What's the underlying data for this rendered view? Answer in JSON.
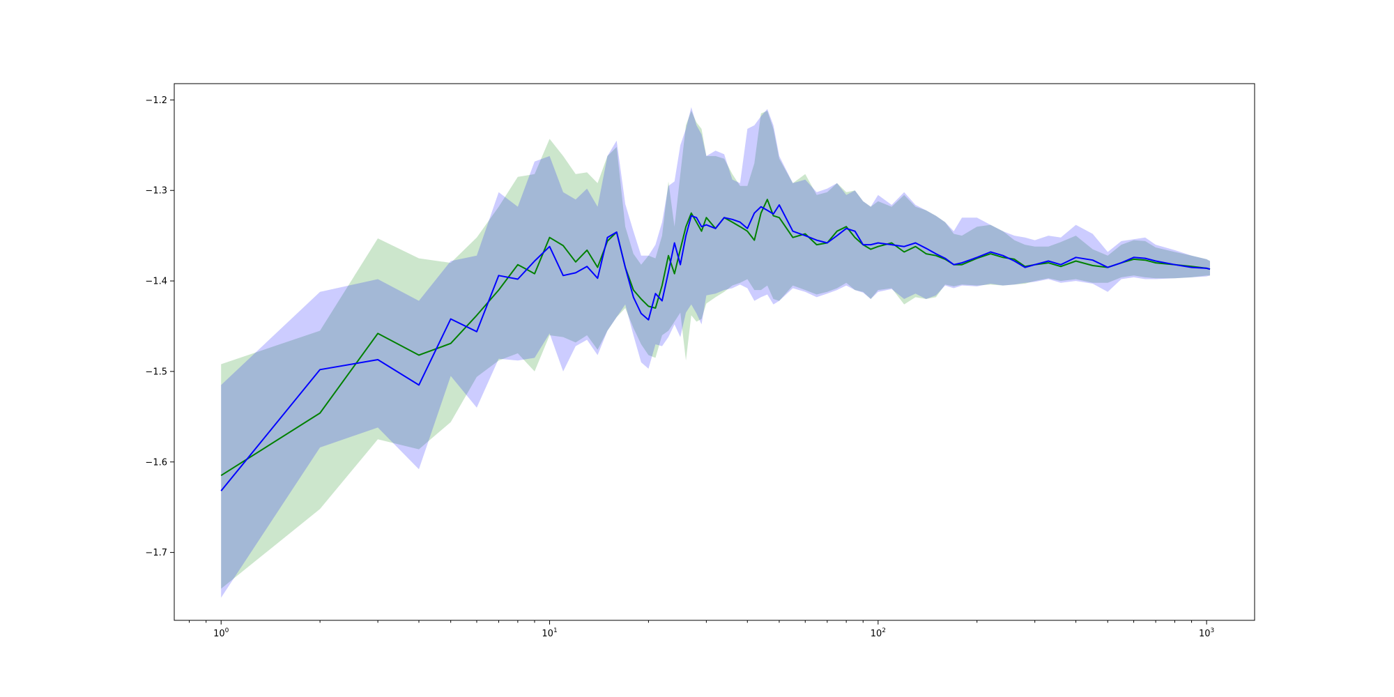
{
  "chart_data": {
    "type": "line",
    "title": "",
    "xlabel": "",
    "ylabel": "",
    "xscale": "log",
    "xlim": [
      0.72,
      1400
    ],
    "ylim": [
      -1.775,
      -1.182
    ],
    "grid": false,
    "legend": "none",
    "x_ticks": [
      {
        "value": 1,
        "base": "10",
        "exp": "0"
      },
      {
        "value": 10,
        "base": "10",
        "exp": "1"
      },
      {
        "value": 100,
        "base": "10",
        "exp": "2"
      },
      {
        "value": 1000,
        "base": "10",
        "exp": "3"
      }
    ],
    "y_ticks": [
      {
        "value": -1.2,
        "label": "−1.2"
      },
      {
        "value": -1.3,
        "label": "−1.3"
      },
      {
        "value": -1.4,
        "label": "−1.4"
      },
      {
        "value": -1.5,
        "label": "−1.5"
      },
      {
        "value": -1.6,
        "label": "−1.6"
      },
      {
        "value": -1.7,
        "label": "−1.7"
      }
    ],
    "series": [
      {
        "color": "#008000",
        "band_color": "#008000",
        "band_opacity": 0.2,
        "x": [
          1,
          2,
          3,
          4,
          5,
          6,
          7,
          8,
          9,
          10,
          11,
          12,
          13,
          14,
          15,
          16,
          17,
          18,
          19,
          20,
          21,
          22,
          23,
          24,
          25,
          26,
          27,
          28,
          29,
          30,
          32,
          34,
          36,
          38,
          40,
          42,
          44,
          46,
          48,
          50,
          55,
          60,
          65,
          70,
          75,
          80,
          85,
          90,
          95,
          100,
          110,
          120,
          130,
          140,
          150,
          160,
          170,
          180,
          200,
          220,
          240,
          260,
          280,
          300,
          330,
          360,
          400,
          450,
          500,
          550,
          600,
          650,
          700,
          800,
          900,
          1000,
          1024
        ],
        "mean": [
          -1.615,
          -1.546,
          -1.458,
          -1.482,
          -1.469,
          -1.438,
          -1.41,
          -1.382,
          -1.392,
          -1.352,
          -1.361,
          -1.379,
          -1.366,
          -1.385,
          -1.356,
          -1.346,
          -1.385,
          -1.41,
          -1.42,
          -1.428,
          -1.43,
          -1.405,
          -1.372,
          -1.392,
          -1.365,
          -1.34,
          -1.325,
          -1.335,
          -1.345,
          -1.33,
          -1.342,
          -1.33,
          -1.335,
          -1.34,
          -1.345,
          -1.355,
          -1.325,
          -1.31,
          -1.328,
          -1.33,
          -1.352,
          -1.348,
          -1.36,
          -1.358,
          -1.345,
          -1.34,
          -1.352,
          -1.36,
          -1.365,
          -1.362,
          -1.358,
          -1.368,
          -1.362,
          -1.37,
          -1.372,
          -1.376,
          -1.382,
          -1.382,
          -1.375,
          -1.37,
          -1.374,
          -1.376,
          -1.384,
          -1.382,
          -1.38,
          -1.384,
          -1.378,
          -1.383,
          -1.385,
          -1.38,
          -1.376,
          -1.377,
          -1.38,
          -1.382,
          -1.384,
          -1.386,
          -1.387
        ],
        "upper": [
          -1.492,
          -1.455,
          -1.353,
          -1.375,
          -1.38,
          -1.352,
          -1.318,
          -1.285,
          -1.282,
          -1.243,
          -1.262,
          -1.282,
          -1.28,
          -1.292,
          -1.262,
          -1.252,
          -1.34,
          -1.37,
          -1.382,
          -1.372,
          -1.375,
          -1.35,
          -1.29,
          -1.34,
          -1.282,
          -1.228,
          -1.212,
          -1.225,
          -1.232,
          -1.262,
          -1.262,
          -1.265,
          -1.282,
          -1.295,
          -1.295,
          -1.27,
          -1.215,
          -1.212,
          -1.232,
          -1.265,
          -1.292,
          -1.282,
          -1.305,
          -1.302,
          -1.292,
          -1.302,
          -1.3,
          -1.312,
          -1.318,
          -1.312,
          -1.318,
          -1.305,
          -1.318,
          -1.322,
          -1.328,
          -1.335,
          -1.348,
          -1.35,
          -1.34,
          -1.338,
          -1.345,
          -1.355,
          -1.36,
          -1.362,
          -1.362,
          -1.357,
          -1.35,
          -1.365,
          -1.372,
          -1.36,
          -1.355,
          -1.356,
          -1.363,
          -1.368,
          -1.372,
          -1.376,
          -1.378
        ],
        "lower": [
          -1.74,
          -1.652,
          -1.575,
          -1.586,
          -1.556,
          -1.506,
          -1.488,
          -1.48,
          -1.5,
          -1.46,
          -1.462,
          -1.468,
          -1.46,
          -1.476,
          -1.455,
          -1.44,
          -1.43,
          -1.452,
          -1.47,
          -1.482,
          -1.485,
          -1.46,
          -1.455,
          -1.445,
          -1.435,
          -1.488,
          -1.438,
          -1.445,
          -1.442,
          -1.425,
          -1.418,
          -1.412,
          -1.405,
          -1.402,
          -1.398,
          -1.41,
          -1.41,
          -1.405,
          -1.42,
          -1.422,
          -1.405,
          -1.41,
          -1.415,
          -1.412,
          -1.408,
          -1.402,
          -1.41,
          -1.412,
          -1.42,
          -1.41,
          -1.408,
          -1.426,
          -1.418,
          -1.42,
          -1.418,
          -1.404,
          -1.406,
          -1.404,
          -1.405,
          -1.404,
          -1.405,
          -1.404,
          -1.403,
          -1.4,
          -1.397,
          -1.4,
          -1.398,
          -1.402,
          -1.402,
          -1.396,
          -1.394,
          -1.396,
          -1.397,
          -1.397,
          -1.396,
          -1.394,
          -1.394
        ]
      },
      {
        "color": "#0000ff",
        "band_color": "#0000ff",
        "band_opacity": 0.2,
        "x": [
          1,
          2,
          3,
          4,
          5,
          6,
          7,
          8,
          9,
          10,
          11,
          12,
          13,
          14,
          15,
          16,
          17,
          18,
          19,
          20,
          21,
          22,
          23,
          24,
          25,
          26,
          27,
          28,
          29,
          30,
          32,
          34,
          36,
          38,
          40,
          42,
          44,
          46,
          48,
          50,
          55,
          60,
          65,
          70,
          75,
          80,
          85,
          90,
          95,
          100,
          110,
          120,
          130,
          140,
          150,
          160,
          170,
          180,
          200,
          220,
          240,
          260,
          280,
          300,
          330,
          360,
          400,
          450,
          500,
          550,
          600,
          650,
          700,
          800,
          900,
          1000,
          1024
        ],
        "mean": [
          -1.632,
          -1.498,
          -1.487,
          -1.515,
          -1.442,
          -1.456,
          -1.394,
          -1.398,
          -1.378,
          -1.362,
          -1.394,
          -1.391,
          -1.384,
          -1.397,
          -1.352,
          -1.346,
          -1.385,
          -1.418,
          -1.436,
          -1.443,
          -1.414,
          -1.422,
          -1.39,
          -1.358,
          -1.382,
          -1.35,
          -1.328,
          -1.33,
          -1.34,
          -1.338,
          -1.342,
          -1.33,
          -1.332,
          -1.335,
          -1.342,
          -1.325,
          -1.318,
          -1.322,
          -1.326,
          -1.316,
          -1.345,
          -1.35,
          -1.355,
          -1.358,
          -1.35,
          -1.342,
          -1.345,
          -1.36,
          -1.36,
          -1.358,
          -1.36,
          -1.362,
          -1.358,
          -1.364,
          -1.37,
          -1.375,
          -1.382,
          -1.38,
          -1.374,
          -1.368,
          -1.372,
          -1.378,
          -1.385,
          -1.382,
          -1.378,
          -1.382,
          -1.374,
          -1.377,
          -1.385,
          -1.38,
          -1.374,
          -1.375,
          -1.378,
          -1.382,
          -1.385,
          -1.386,
          -1.387
        ],
        "upper": [
          -1.515,
          -1.412,
          -1.398,
          -1.422,
          -1.378,
          -1.372,
          -1.302,
          -1.318,
          -1.268,
          -1.262,
          -1.302,
          -1.31,
          -1.298,
          -1.318,
          -1.262,
          -1.245,
          -1.315,
          -1.345,
          -1.372,
          -1.372,
          -1.36,
          -1.335,
          -1.295,
          -1.29,
          -1.25,
          -1.232,
          -1.208,
          -1.228,
          -1.238,
          -1.262,
          -1.256,
          -1.26,
          -1.288,
          -1.292,
          -1.232,
          -1.228,
          -1.218,
          -1.21,
          -1.228,
          -1.262,
          -1.292,
          -1.288,
          -1.302,
          -1.298,
          -1.292,
          -1.305,
          -1.3,
          -1.312,
          -1.318,
          -1.305,
          -1.316,
          -1.302,
          -1.316,
          -1.322,
          -1.328,
          -1.335,
          -1.345,
          -1.33,
          -1.33,
          -1.338,
          -1.345,
          -1.35,
          -1.352,
          -1.355,
          -1.35,
          -1.352,
          -1.338,
          -1.348,
          -1.368,
          -1.356,
          -1.354,
          -1.352,
          -1.36,
          -1.366,
          -1.372,
          -1.376,
          -1.378
        ],
        "lower": [
          -1.75,
          -1.584,
          -1.562,
          -1.608,
          -1.505,
          -1.54,
          -1.486,
          -1.488,
          -1.485,
          -1.458,
          -1.5,
          -1.472,
          -1.465,
          -1.482,
          -1.455,
          -1.44,
          -1.426,
          -1.46,
          -1.49,
          -1.497,
          -1.47,
          -1.472,
          -1.462,
          -1.448,
          -1.462,
          -1.435,
          -1.426,
          -1.436,
          -1.448,
          -1.416,
          -1.414,
          -1.41,
          -1.408,
          -1.404,
          -1.408,
          -1.422,
          -1.418,
          -1.415,
          -1.426,
          -1.422,
          -1.408,
          -1.412,
          -1.418,
          -1.414,
          -1.41,
          -1.405,
          -1.41,
          -1.413,
          -1.42,
          -1.412,
          -1.409,
          -1.42,
          -1.414,
          -1.42,
          -1.416,
          -1.405,
          -1.408,
          -1.405,
          -1.406,
          -1.403,
          -1.405,
          -1.404,
          -1.402,
          -1.401,
          -1.398,
          -1.402,
          -1.4,
          -1.403,
          -1.412,
          -1.398,
          -1.396,
          -1.398,
          -1.398,
          -1.397,
          -1.396,
          -1.395,
          -1.394
        ]
      }
    ]
  }
}
